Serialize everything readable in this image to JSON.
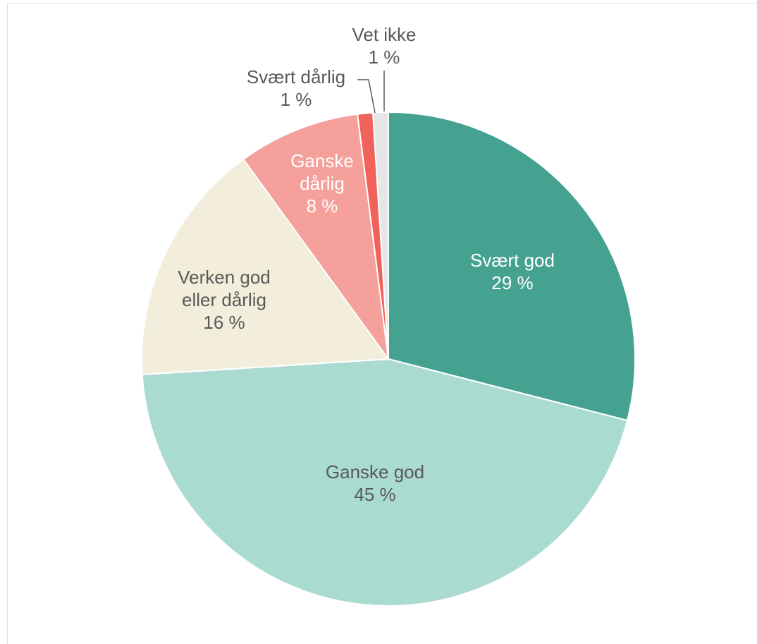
{
  "chart_data": {
    "type": "pie",
    "categories": [
      "Svært god",
      "Ganske god",
      "Verken god eller dårlig",
      "Ganske dårlig",
      "Svært dårlig",
      "Vet ikke"
    ],
    "values": [
      29,
      45,
      16,
      8,
      1,
      1
    ],
    "value_labels": [
      "29 %",
      "45 %",
      "16 %",
      "8 %",
      "1 %",
      "1 %"
    ],
    "colors": [
      "#45a190",
      "#aadbd0",
      "#f2eedb",
      "#f5a09b",
      "#f0625a",
      "#e6e6e6"
    ]
  }
}
